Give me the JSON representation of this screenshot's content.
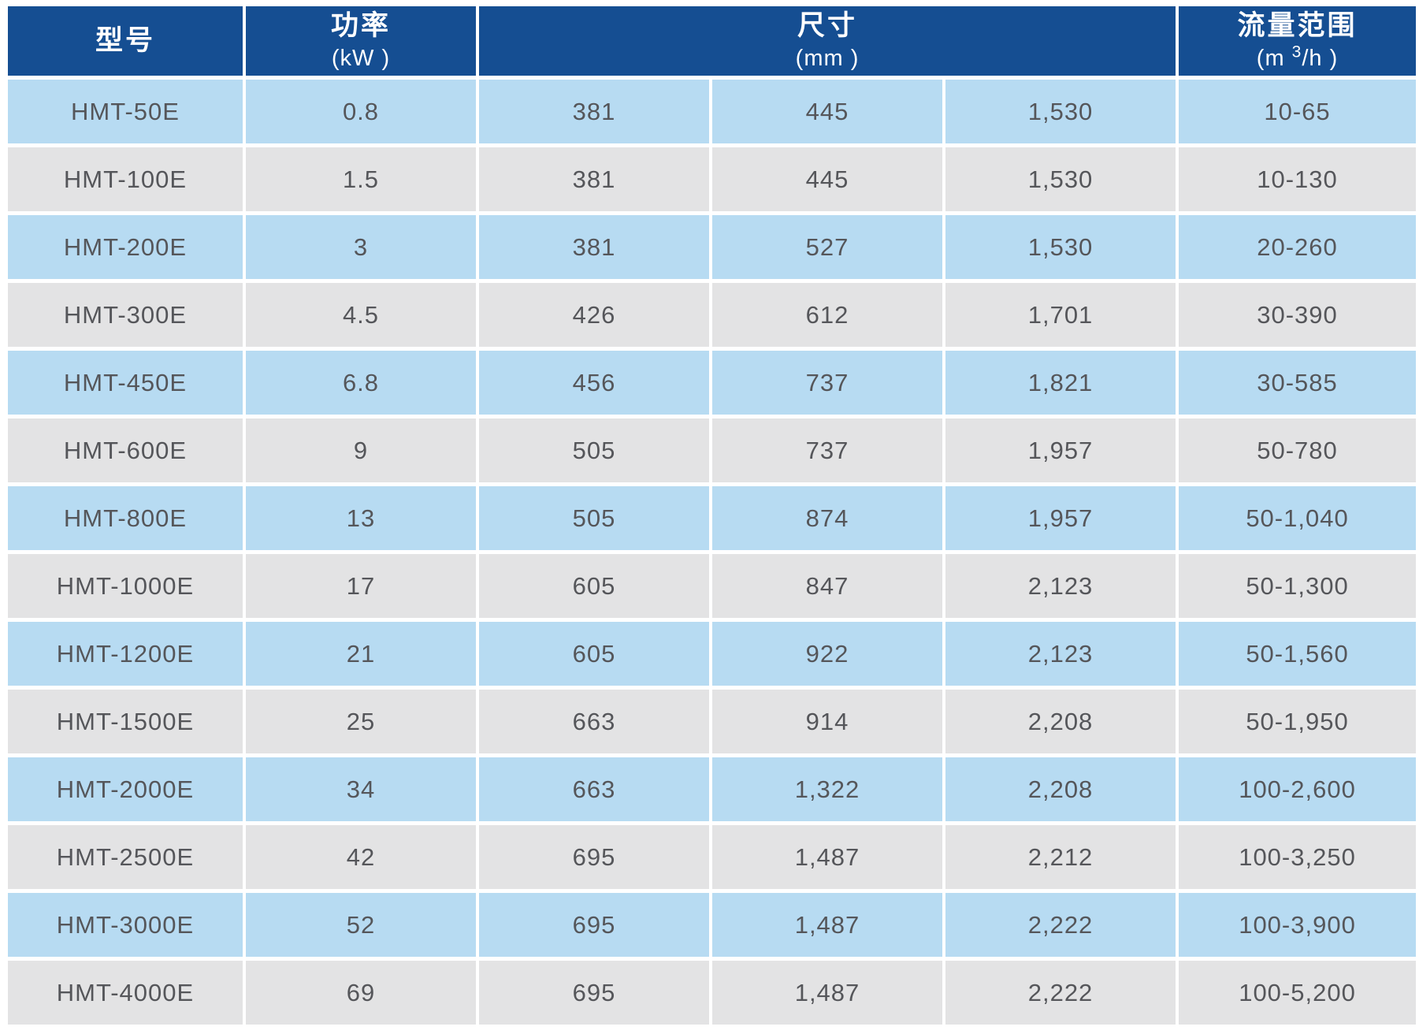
{
  "colors": {
    "header_bg": "#154e92",
    "header_text": "#ffffff",
    "row_blue": "#b7dbf2",
    "row_gray": "#e3e3e4",
    "cell_text": "#55565a",
    "page_bg": "#ffffff"
  },
  "table": {
    "headers": {
      "model": {
        "title": "型号",
        "unit": ""
      },
      "power": {
        "title": "功率",
        "unit": "(kW )"
      },
      "dimensions": {
        "title": "尺寸",
        "unit": "(mm )"
      },
      "flow": {
        "title": "流量范围",
        "unit_prefix": "(m ",
        "unit_sup": "3",
        "unit_suffix": "/h )"
      }
    },
    "rows": [
      {
        "model": "HMT-50E",
        "power": "0.8",
        "dim1": "381",
        "dim2": "445",
        "dim3": "1,530",
        "flow": "10-65"
      },
      {
        "model": "HMT-100E",
        "power": "1.5",
        "dim1": "381",
        "dim2": "445",
        "dim3": "1,530",
        "flow": "10-130"
      },
      {
        "model": "HMT-200E",
        "power": "3",
        "dim1": "381",
        "dim2": "527",
        "dim3": "1,530",
        "flow": "20-260"
      },
      {
        "model": "HMT-300E",
        "power": "4.5",
        "dim1": "426",
        "dim2": "612",
        "dim3": "1,701",
        "flow": "30-390"
      },
      {
        "model": "HMT-450E",
        "power": "6.8",
        "dim1": "456",
        "dim2": "737",
        "dim3": "1,821",
        "flow": "30-585"
      },
      {
        "model": "HMT-600E",
        "power": "9",
        "dim1": "505",
        "dim2": "737",
        "dim3": "1,957",
        "flow": "50-780"
      },
      {
        "model": "HMT-800E",
        "power": "13",
        "dim1": "505",
        "dim2": "874",
        "dim3": "1,957",
        "flow": "50-1,040"
      },
      {
        "model": "HMT-1000E",
        "power": "17",
        "dim1": "605",
        "dim2": "847",
        "dim3": "2,123",
        "flow": "50-1,300"
      },
      {
        "model": "HMT-1200E",
        "power": "21",
        "dim1": "605",
        "dim2": "922",
        "dim3": "2,123",
        "flow": "50-1,560"
      },
      {
        "model": "HMT-1500E",
        "power": "25",
        "dim1": "663",
        "dim2": "914",
        "dim3": "2,208",
        "flow": "50-1,950"
      },
      {
        "model": "HMT-2000E",
        "power": "34",
        "dim1": "663",
        "dim2": "1,322",
        "dim3": "2,208",
        "flow": "100-2,600"
      },
      {
        "model": "HMT-2500E",
        "power": "42",
        "dim1": "695",
        "dim2": "1,487",
        "dim3": "2,212",
        "flow": "100-3,250"
      },
      {
        "model": "HMT-3000E",
        "power": "52",
        "dim1": "695",
        "dim2": "1,487",
        "dim3": "2,222",
        "flow": "100-3,900"
      },
      {
        "model": "HMT-4000E",
        "power": "69",
        "dim1": "695",
        "dim2": "1,487",
        "dim3": "2,222",
        "flow": "100-5,200"
      }
    ]
  }
}
